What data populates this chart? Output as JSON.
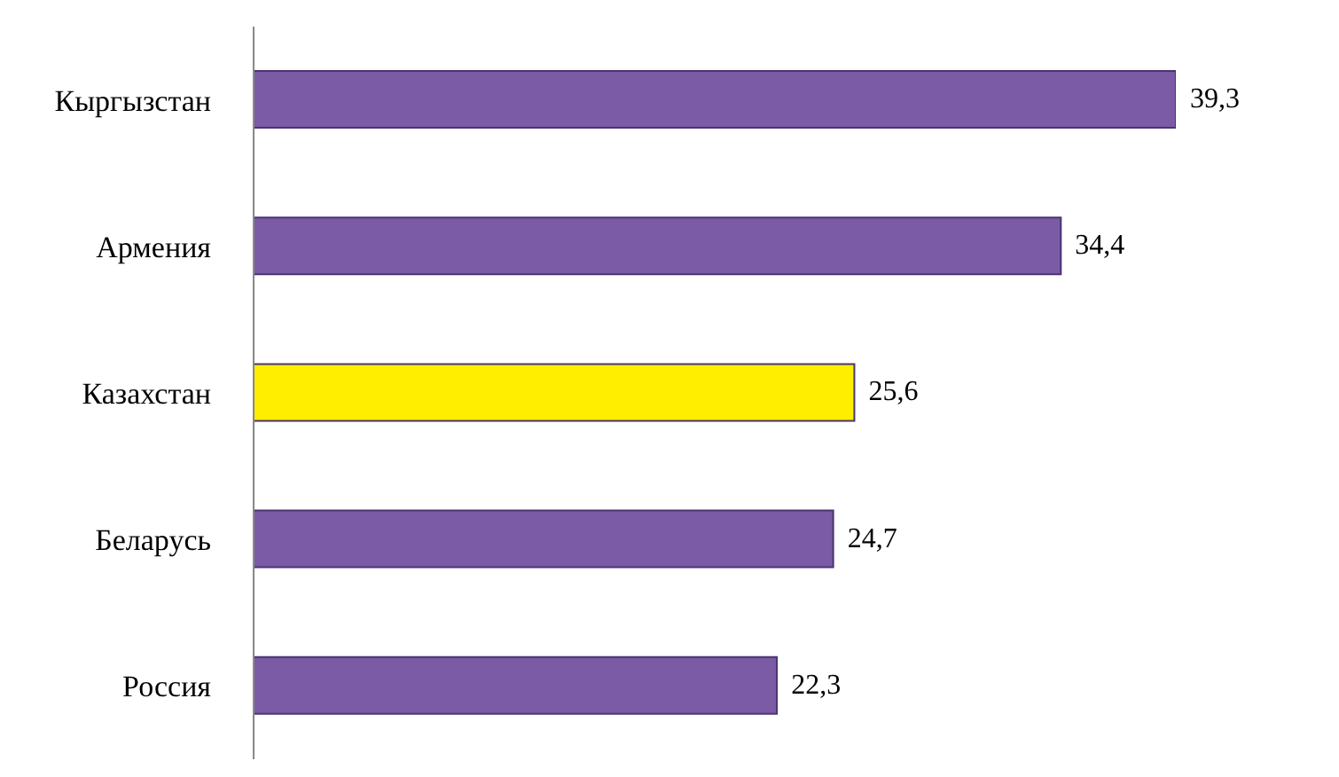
{
  "chart_data": {
    "type": "bar",
    "orientation": "horizontal",
    "categories": [
      "Кыргызстан",
      "Армения",
      "Казахстан",
      "Беларусь",
      "Россия"
    ],
    "values": [
      39.3,
      34.4,
      25.6,
      24.7,
      22.3
    ],
    "colors": [
      "#7b5aa6",
      "#7b5aa6",
      "#ffee00",
      "#7b5aa6",
      "#7b5aa6"
    ],
    "value_labels": [
      "39,3",
      "34,4",
      "25,6",
      "24,7",
      "22,3"
    ],
    "grid": false
  }
}
